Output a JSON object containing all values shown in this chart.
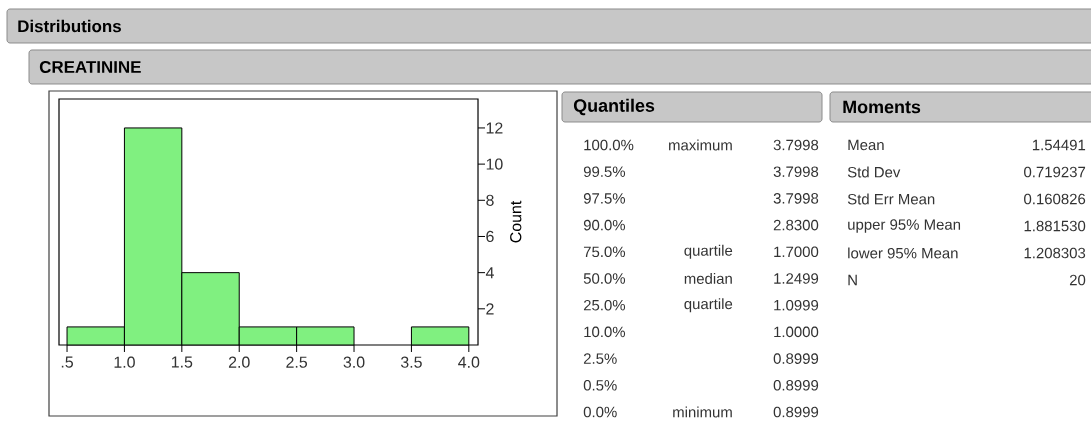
{
  "chart_data": {
    "type": "histogram",
    "title": "Distributions",
    "subtitle": "CREATININE",
    "ylabel": "Count",
    "bins": [
      0.5,
      1.0,
      1.5,
      2.0,
      2.5,
      3.0,
      3.5,
      4.0
    ],
    "values": [
      1,
      12,
      4,
      1,
      1,
      0,
      1
    ],
    "color": "#80f080",
    "xlim": [
      0.43,
      4.08
    ],
    "ylim": [
      0,
      13.6
    ],
    "xticks": [
      {
        "value": 0.5,
        "label": ".5"
      },
      {
        "value": 1.0,
        "label": "1.0"
      },
      {
        "value": 1.5,
        "label": "1.5"
      },
      {
        "value": 2.0,
        "label": "2.0"
      },
      {
        "value": 2.5,
        "label": "2.5"
      },
      {
        "value": 3.0,
        "label": "3.0"
      },
      {
        "value": 3.5,
        "label": "3.5"
      },
      {
        "value": 4.0,
        "label": "4.0"
      }
    ],
    "yticks": [
      2,
      4,
      6,
      8,
      10,
      12
    ],
    "annotations": [
      "Quantiles",
      "100.0%",
      "maximum",
      "3.7998",
      "99.5%",
      "3.7998",
      "97.5%",
      "3.7998",
      "90.0%",
      "2.8300",
      "75.0%",
      "quartile",
      "1.7000",
      "50.0%",
      "median",
      "1.2499",
      "25.0%",
      "quartile",
      "1.0999",
      "10.0%",
      "1.0000",
      "2.5%",
      "0.8999",
      "0.5%",
      "0.8999",
      "0.0%",
      "minimum",
      "0.8999",
      "Moments",
      "Mean",
      "1.54491",
      "Std Dev",
      "0.719237",
      "Std Err Mean",
      "0.160826",
      "upper 95% Mean",
      "1.881530",
      "lower 95% Mean",
      "1.208303",
      "N",
      "20"
    ]
  }
}
